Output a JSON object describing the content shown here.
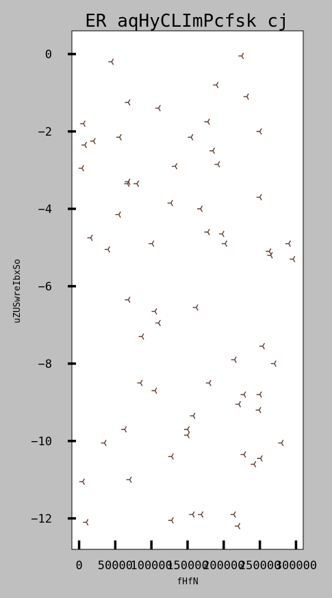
{
  "chart_data": {
    "type": "scatter",
    "title": "ER aqHyCLImPcfsk cj",
    "xlabel": "fHfN",
    "ylabel": "uZUSwreIbxSo",
    "xlim": [
      -10000,
      310000
    ],
    "ylim": [
      -12.8,
      0.6
    ],
    "xticks": [
      0,
      50000,
      100000,
      150000,
      200000,
      250000,
      300000
    ],
    "xtick_labels": [
      "0",
      "50000",
      "100000",
      "150000",
      "200000",
      "250000",
      "300000"
    ],
    "yticks": [
      0,
      -2,
      -4,
      -6,
      -8,
      -10,
      -12
    ],
    "ytick_labels": [
      "0",
      "−2",
      "−4",
      "−6",
      "−8",
      "−10",
      "−12"
    ],
    "grid": false,
    "marker": "tri_left",
    "marker_color": "#5a3a2a",
    "series": [
      {
        "points": [
          [
            45000,
            -0.2
          ],
          [
            225000,
            -0.05
          ],
          [
            190000,
            -0.8
          ],
          [
            232000,
            -1.1
          ],
          [
            68000,
            -1.25
          ],
          [
            110000,
            -1.4
          ],
          [
            6000,
            -1.8
          ],
          [
            178000,
            -1.75
          ],
          [
            250000,
            -2.0
          ],
          [
            56000,
            -2.15
          ],
          [
            155000,
            -2.15
          ],
          [
            20000,
            -2.25
          ],
          [
            8000,
            -2.35
          ],
          [
            185000,
            -2.5
          ],
          [
            192000,
            -2.85
          ],
          [
            4000,
            -2.95
          ],
          [
            133000,
            -2.9
          ],
          [
            68000,
            -3.3
          ],
          [
            67000,
            -3.35
          ],
          [
            80000,
            -3.35
          ],
          [
            250000,
            -3.7
          ],
          [
            127000,
            -3.85
          ],
          [
            168000,
            -4.0
          ],
          [
            55000,
            -4.15
          ],
          [
            178000,
            -4.6
          ],
          [
            198000,
            -4.65
          ],
          [
            16000,
            -4.75
          ],
          [
            101000,
            -4.9
          ],
          [
            202000,
            -4.9
          ],
          [
            40000,
            -5.05
          ],
          [
            263000,
            -5.1
          ],
          [
            265000,
            -5.2
          ],
          [
            290000,
            -4.9
          ],
          [
            296000,
            -5.3
          ],
          [
            68000,
            -6.35
          ],
          [
            162000,
            -6.55
          ],
          [
            105000,
            -6.65
          ],
          [
            110000,
            -6.95
          ],
          [
            87000,
            -7.3
          ],
          [
            254000,
            -7.55
          ],
          [
            215000,
            -7.9
          ],
          [
            270000,
            -8.0
          ],
          [
            85000,
            -8.5
          ],
          [
            180000,
            -8.5
          ],
          [
            105000,
            -8.7
          ],
          [
            228000,
            -8.8
          ],
          [
            250000,
            -8.8
          ],
          [
            221000,
            -9.05
          ],
          [
            249000,
            -9.2
          ],
          [
            158000,
            -9.35
          ],
          [
            63000,
            -9.7
          ],
          [
            150000,
            -9.7
          ],
          [
            150000,
            -9.85
          ],
          [
            280000,
            -10.05
          ],
          [
            35000,
            -10.05
          ],
          [
            228000,
            -10.35
          ],
          [
            128000,
            -10.4
          ],
          [
            251000,
            -10.45
          ],
          [
            242000,
            -10.6
          ],
          [
            70000,
            -11.0
          ],
          [
            5000,
            -11.05
          ],
          [
            157000,
            -11.9
          ],
          [
            169000,
            -11.9
          ],
          [
            214000,
            -11.9
          ],
          [
            128000,
            -12.05
          ],
          [
            10000,
            -12.1
          ],
          [
            220000,
            -12.2
          ]
        ]
      }
    ]
  }
}
